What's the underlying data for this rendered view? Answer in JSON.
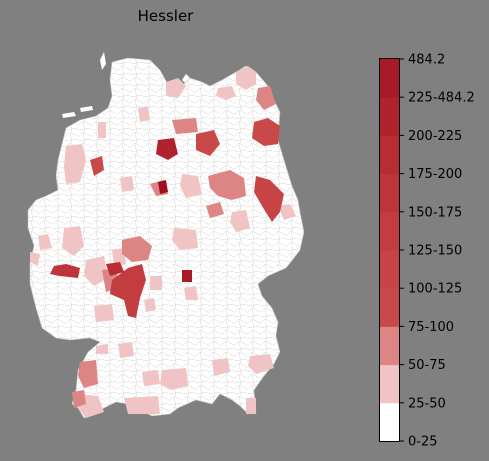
{
  "map": {
    "title": "Hessler",
    "background": "#808080",
    "base_fill": "#ffffff",
    "border_color": "#bdbdbd"
  },
  "legend": {
    "classes": [
      {
        "label": "0-25",
        "color": "#ffffff"
      },
      {
        "label": "25-50",
        "color": "#f0c4c4"
      },
      {
        "label": "50-75",
        "color": "#dd8585"
      },
      {
        "label": "75-100",
        "color": "#c9484a"
      },
      {
        "label": "100-125",
        "color": "#c64446"
      },
      {
        "label": "125-150",
        "color": "#c23c40"
      },
      {
        "label": "150-175",
        "color": "#bd353a"
      },
      {
        "label": "175-200",
        "color": "#b82c34"
      },
      {
        "label": "200-225",
        "color": "#b0232e"
      },
      {
        "label": "225-484.2",
        "color": "#a81a28"
      },
      {
        "label": "484.2",
        "color": "#9c0f1e"
      }
    ],
    "tick_labels": [
      "0-25",
      "25-50",
      "50-75",
      "75-100",
      "100-125",
      "125-150",
      "150-175",
      "175-200",
      "200-225",
      "225-484.2",
      "484.2"
    ]
  }
}
